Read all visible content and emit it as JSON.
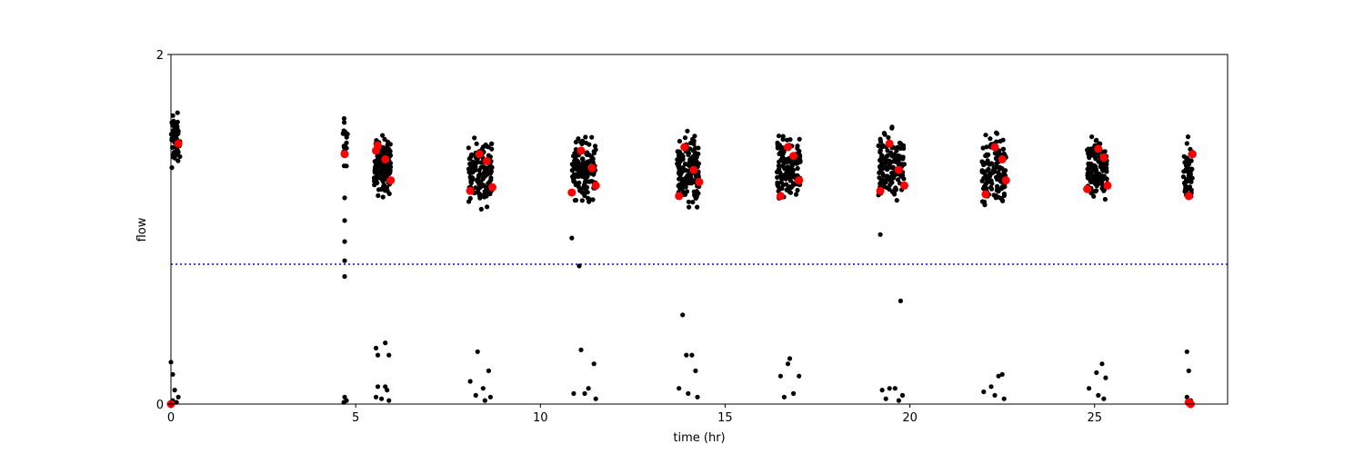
{
  "chart_data": {
    "type": "scatter",
    "title": "",
    "xlabel": "time (hr)",
    "ylabel": "flow",
    "xlim": [
      0,
      28.6
    ],
    "ylim": [
      0,
      2
    ],
    "xticks": [
      0,
      5,
      10,
      15,
      20,
      25
    ],
    "xtick_labels": [
      "0",
      "5",
      "10",
      "15",
      "20",
      "25"
    ],
    "yticks": [
      0,
      2
    ],
    "ytick_labels": [
      "0",
      "2"
    ],
    "grid": false,
    "threshold": {
      "y": 0.8,
      "color": "#0000ff",
      "style": "dotted"
    },
    "series": [
      {
        "name": "",
        "color": "#000000",
        "marker": "dot",
        "clusters": [
          {
            "x": [
              0.0,
              0.25
            ],
            "y": [
              1.3,
              1.72
            ],
            "n": 60
          },
          {
            "x": [
              4.65,
              4.78
            ],
            "y": [
              1.3,
              1.7
            ],
            "n": 18
          },
          {
            "x": [
              5.5,
              5.95
            ],
            "y": [
              1.15,
              1.58
            ],
            "n": 140
          },
          {
            "x": [
              8.05,
              8.7
            ],
            "y": [
              1.08,
              1.58
            ],
            "n": 140
          },
          {
            "x": [
              10.85,
              11.5
            ],
            "y": [
              1.1,
              1.58
            ],
            "n": 140
          },
          {
            "x": [
              13.7,
              14.3
            ],
            "y": [
              1.05,
              1.6
            ],
            "n": 140
          },
          {
            "x": [
              16.4,
              17.05
            ],
            "y": [
              1.08,
              1.6
            ],
            "n": 140
          },
          {
            "x": [
              19.15,
              19.85
            ],
            "y": [
              1.08,
              1.62
            ],
            "n": 140
          },
          {
            "x": [
              21.95,
              22.6
            ],
            "y": [
              1.06,
              1.62
            ],
            "n": 140
          },
          {
            "x": [
              24.8,
              25.35
            ],
            "y": [
              1.1,
              1.6
            ],
            "n": 140
          },
          {
            "x": [
              27.4,
              27.65
            ],
            "y": [
              1.06,
              1.6
            ],
            "n": 60
          }
        ],
        "points": [
          [
            4.7,
            1.18
          ],
          [
            4.7,
            1.05
          ],
          [
            4.7,
            0.93
          ],
          [
            4.7,
            0.82
          ],
          [
            4.7,
            0.73
          ],
          [
            10.85,
            0.95
          ],
          [
            11.05,
            0.79
          ],
          [
            19.2,
            0.97
          ],
          [
            19.75,
            0.59
          ],
          [
            13.85,
            0.51
          ],
          [
            0.0,
            0.24
          ],
          [
            0.05,
            0.17
          ],
          [
            0.1,
            0.08
          ],
          [
            0.2,
            0.04
          ],
          [
            0.05,
            0.02
          ],
          [
            0.15,
            0.01
          ],
          [
            4.7,
            0.04
          ],
          [
            4.75,
            0.02
          ],
          [
            4.68,
            0.01
          ],
          [
            5.55,
            0.32
          ],
          [
            5.6,
            0.28
          ],
          [
            5.8,
            0.35
          ],
          [
            5.9,
            0.28
          ],
          [
            5.6,
            0.1
          ],
          [
            5.8,
            0.1
          ],
          [
            5.85,
            0.08
          ],
          [
            5.55,
            0.04
          ],
          [
            5.7,
            0.03
          ],
          [
            5.9,
            0.02
          ],
          [
            8.1,
            0.13
          ],
          [
            8.3,
            0.3
          ],
          [
            8.6,
            0.19
          ],
          [
            8.45,
            0.09
          ],
          [
            8.25,
            0.05
          ],
          [
            8.65,
            0.04
          ],
          [
            8.5,
            0.02
          ],
          [
            10.9,
            0.06
          ],
          [
            11.1,
            0.31
          ],
          [
            11.45,
            0.23
          ],
          [
            11.3,
            0.09
          ],
          [
            11.2,
            0.06
          ],
          [
            11.5,
            0.03
          ],
          [
            13.75,
            0.09
          ],
          [
            13.95,
            0.28
          ],
          [
            14.1,
            0.28
          ],
          [
            14.2,
            0.19
          ],
          [
            14.0,
            0.06
          ],
          [
            14.25,
            0.04
          ],
          [
            16.5,
            0.16
          ],
          [
            16.75,
            0.26
          ],
          [
            16.7,
            0.23
          ],
          [
            17.0,
            0.16
          ],
          [
            16.85,
            0.06
          ],
          [
            16.6,
            0.04
          ],
          [
            19.25,
            0.08
          ],
          [
            19.45,
            0.09
          ],
          [
            19.6,
            0.09
          ],
          [
            19.8,
            0.05
          ],
          [
            19.35,
            0.03
          ],
          [
            19.7,
            0.02
          ],
          [
            22.0,
            0.07
          ],
          [
            22.2,
            0.1
          ],
          [
            22.4,
            0.16
          ],
          [
            22.5,
            0.17
          ],
          [
            22.3,
            0.05
          ],
          [
            22.55,
            0.03
          ],
          [
            24.85,
            0.09
          ],
          [
            25.05,
            0.18
          ],
          [
            25.2,
            0.23
          ],
          [
            25.3,
            0.15
          ],
          [
            25.1,
            0.05
          ],
          [
            25.25,
            0.03
          ],
          [
            27.5,
            0.3
          ],
          [
            27.55,
            0.19
          ],
          [
            27.5,
            0.04
          ],
          [
            27.6,
            0.02
          ]
        ]
      },
      {
        "name": "",
        "color": "#ff0000",
        "marker": "dot-large",
        "points": [
          [
            0.2,
            1.49
          ],
          [
            0.0,
            0.0
          ],
          [
            4.7,
            1.43
          ],
          [
            5.55,
            1.45
          ],
          [
            5.6,
            1.48
          ],
          [
            5.8,
            1.4
          ],
          [
            5.95,
            1.28
          ],
          [
            8.1,
            1.22
          ],
          [
            8.35,
            1.43
          ],
          [
            8.55,
            1.39
          ],
          [
            8.7,
            1.24
          ],
          [
            10.85,
            1.21
          ],
          [
            11.1,
            1.45
          ],
          [
            11.4,
            1.35
          ],
          [
            11.5,
            1.25
          ],
          [
            13.75,
            1.19
          ],
          [
            13.9,
            1.47
          ],
          [
            14.15,
            1.34
          ],
          [
            14.3,
            1.27
          ],
          [
            16.5,
            1.19
          ],
          [
            16.7,
            1.47
          ],
          [
            16.85,
            1.42
          ],
          [
            17.0,
            1.28
          ],
          [
            19.2,
            1.22
          ],
          [
            19.45,
            1.49
          ],
          [
            19.7,
            1.34
          ],
          [
            19.85,
            1.25
          ],
          [
            22.05,
            1.2
          ],
          [
            22.3,
            1.47
          ],
          [
            22.5,
            1.4
          ],
          [
            22.6,
            1.28
          ],
          [
            24.8,
            1.23
          ],
          [
            25.1,
            1.46
          ],
          [
            25.25,
            1.41
          ],
          [
            25.35,
            1.25
          ],
          [
            27.55,
            1.19
          ],
          [
            27.65,
            1.43
          ],
          [
            27.6,
            0.0
          ],
          [
            27.55,
            0.01
          ]
        ]
      }
    ]
  }
}
